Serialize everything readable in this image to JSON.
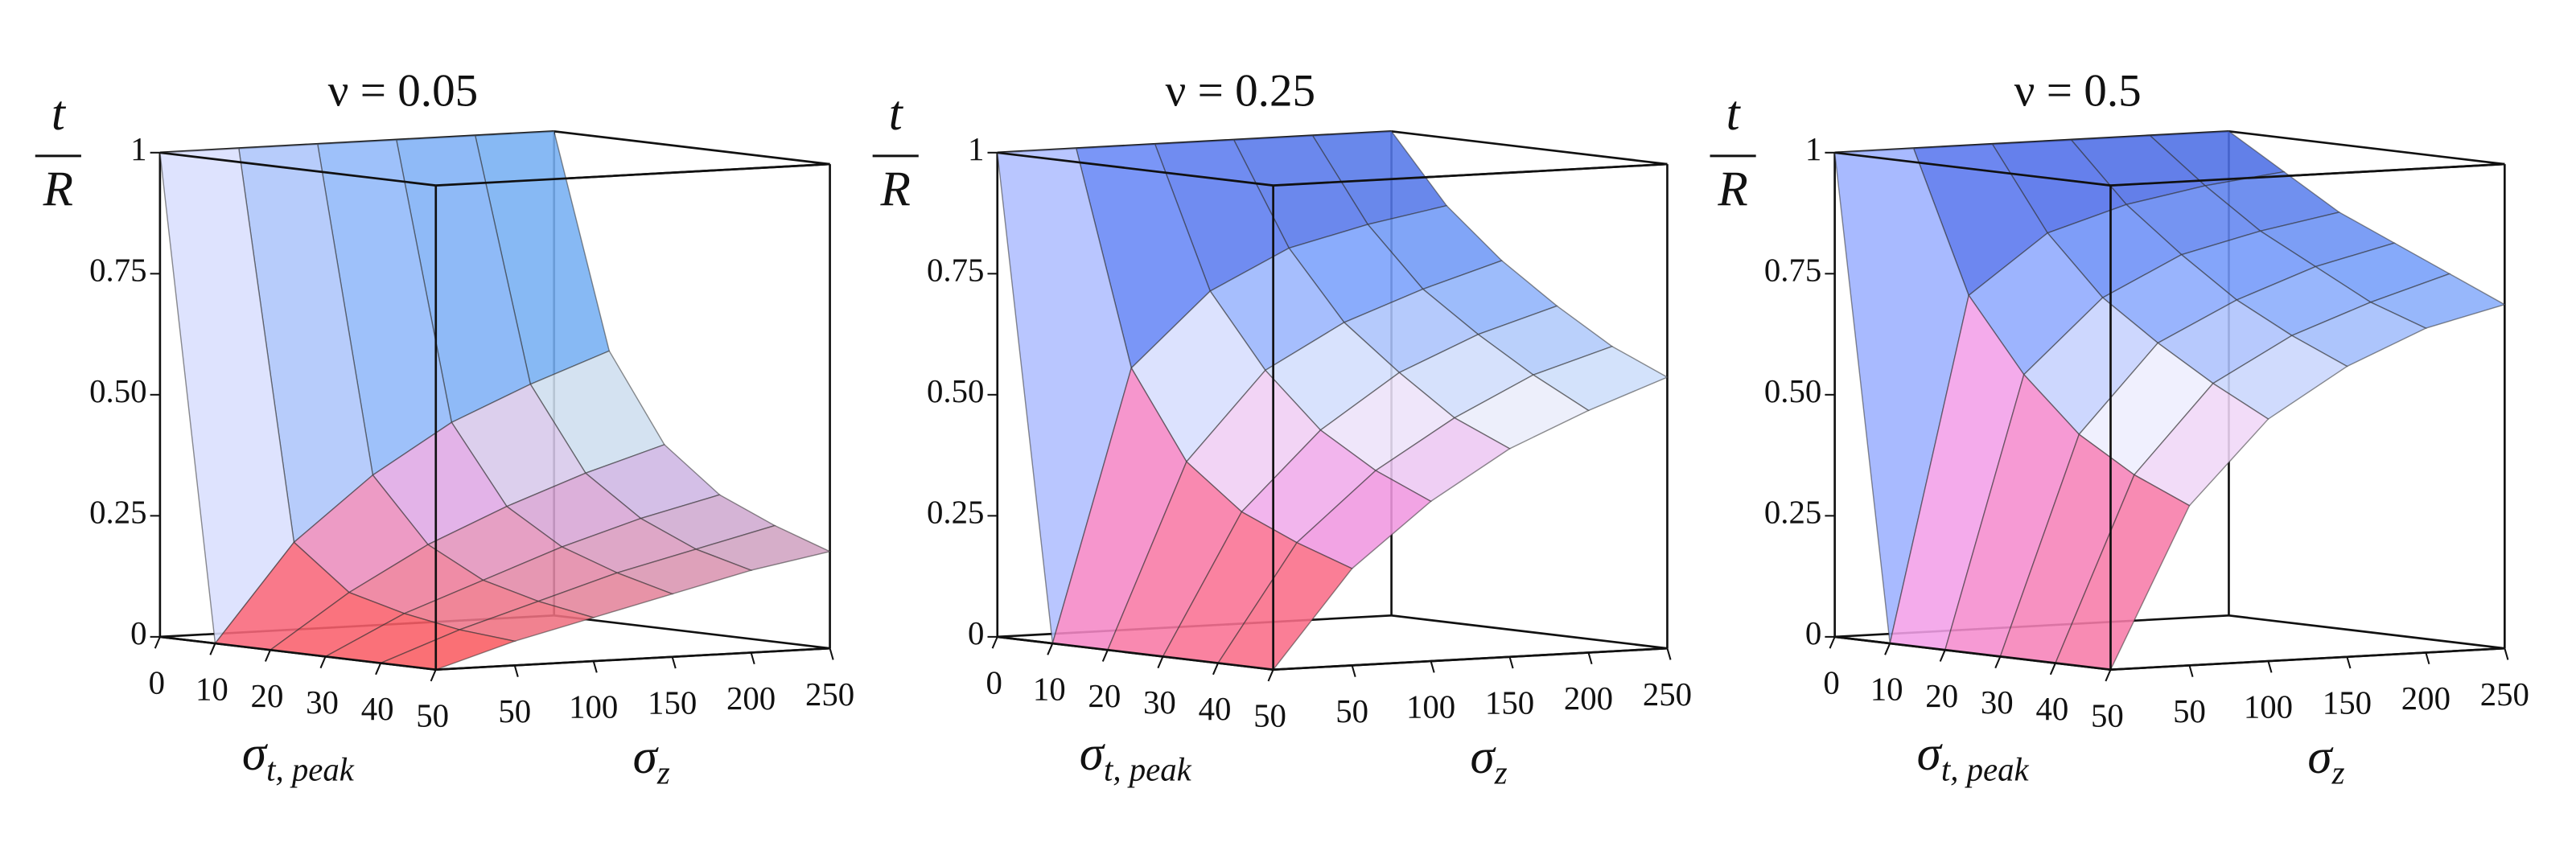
{
  "chart_data": [
    {
      "type": "surface",
      "title": "ν = 0.05",
      "x_label": "σ",
      "x_label_sub": "t, peak",
      "y_label": "σ",
      "y_label_sub": "z",
      "z_label_top": "t",
      "z_label_bottom": "R",
      "x": [
        0,
        10,
        20,
        30,
        40,
        50
      ],
      "y": [
        0,
        50,
        100,
        150,
        200,
        250
      ],
      "values": [
        [
          1,
          1,
          1,
          1,
          1,
          1
        ],
        [
          0,
          0.2,
          0.33,
          0.43,
          0.5,
          0.56
        ],
        [
          0,
          0.11,
          0.2,
          0.27,
          0.33,
          0.38
        ],
        [
          0,
          0.08,
          0.14,
          0.2,
          0.25,
          0.29
        ],
        [
          0,
          0.06,
          0.11,
          0.16,
          0.2,
          0.24
        ],
        [
          0,
          0.05,
          0.09,
          0.13,
          0.17,
          0.2
        ]
      ],
      "xlim": [
        0,
        50
      ],
      "xticks": [
        0,
        10,
        20,
        30,
        40,
        50
      ],
      "ylim": [
        0,
        250
      ],
      "yticks": [
        50,
        100,
        150,
        200,
        250
      ],
      "zlim": [
        0,
        1
      ],
      "zticks": [
        0,
        0.25,
        {
          "value": 0.5,
          "label": "0.50"
        },
        0.75,
        1
      ]
    },
    {
      "type": "surface",
      "title": "ν = 0.25",
      "x_label": "σ",
      "x_label_sub": "t, peak",
      "y_label": "σ",
      "y_label_sub": "z",
      "z_label_top": "t",
      "z_label_bottom": "R",
      "x": [
        0,
        10,
        20,
        30,
        40,
        50
      ],
      "y": [
        0,
        50,
        100,
        150,
        200,
        250
      ],
      "values": [
        [
          1,
          1,
          1,
          1,
          1,
          1
        ],
        [
          0,
          0.56,
          0.71,
          0.79,
          0.83,
          0.86
        ],
        [
          0,
          0.38,
          0.56,
          0.65,
          0.71,
          0.76
        ],
        [
          0,
          0.29,
          0.45,
          0.56,
          0.63,
          0.68
        ],
        [
          0,
          0.24,
          0.38,
          0.48,
          0.56,
          0.61
        ],
        [
          0,
          0.2,
          0.33,
          0.43,
          0.5,
          0.56
        ]
      ],
      "xlim": [
        0,
        50
      ],
      "xticks": [
        0,
        10,
        20,
        30,
        40,
        50
      ],
      "ylim": [
        0,
        250
      ],
      "yticks": [
        50,
        100,
        150,
        200,
        250
      ],
      "zlim": [
        0,
        1
      ],
      "zticks": [
        0,
        0.25,
        {
          "value": 0.5,
          "label": "0.50"
        },
        0.75,
        1
      ]
    },
    {
      "type": "surface",
      "title": "ν = 0.5",
      "x_label": "σ",
      "x_label_sub": "t, peak",
      "y_label": "σ",
      "y_label_sub": "z",
      "z_label_top": "t",
      "z_label_bottom": "R",
      "x": [
        0,
        10,
        20,
        30,
        40,
        50
      ],
      "y": [
        0,
        50,
        100,
        150,
        200,
        250
      ],
      "values": [
        [
          1,
          1,
          1,
          1,
          1,
          1
        ],
        [
          0,
          0.71,
          0.83,
          0.88,
          0.91,
          0.93
        ],
        [
          0,
          0.56,
          0.71,
          0.79,
          0.83,
          0.86
        ],
        [
          0,
          0.45,
          0.63,
          0.71,
          0.77,
          0.81
        ],
        [
          0,
          0.38,
          0.56,
          0.65,
          0.71,
          0.76
        ],
        [
          0,
          0.33,
          0.5,
          0.6,
          0.67,
          0.71
        ]
      ],
      "xlim": [
        0,
        50
      ],
      "xticks": [
        0,
        10,
        20,
        30,
        40,
        50
      ],
      "ylim": [
        0,
        250
      ],
      "yticks": [
        50,
        100,
        150,
        200,
        250
      ],
      "zlim": [
        0,
        1
      ],
      "zticks": [
        0,
        0.25,
        {
          "value": 0.5,
          "label": "0.50"
        },
        0.75,
        1
      ]
    }
  ]
}
